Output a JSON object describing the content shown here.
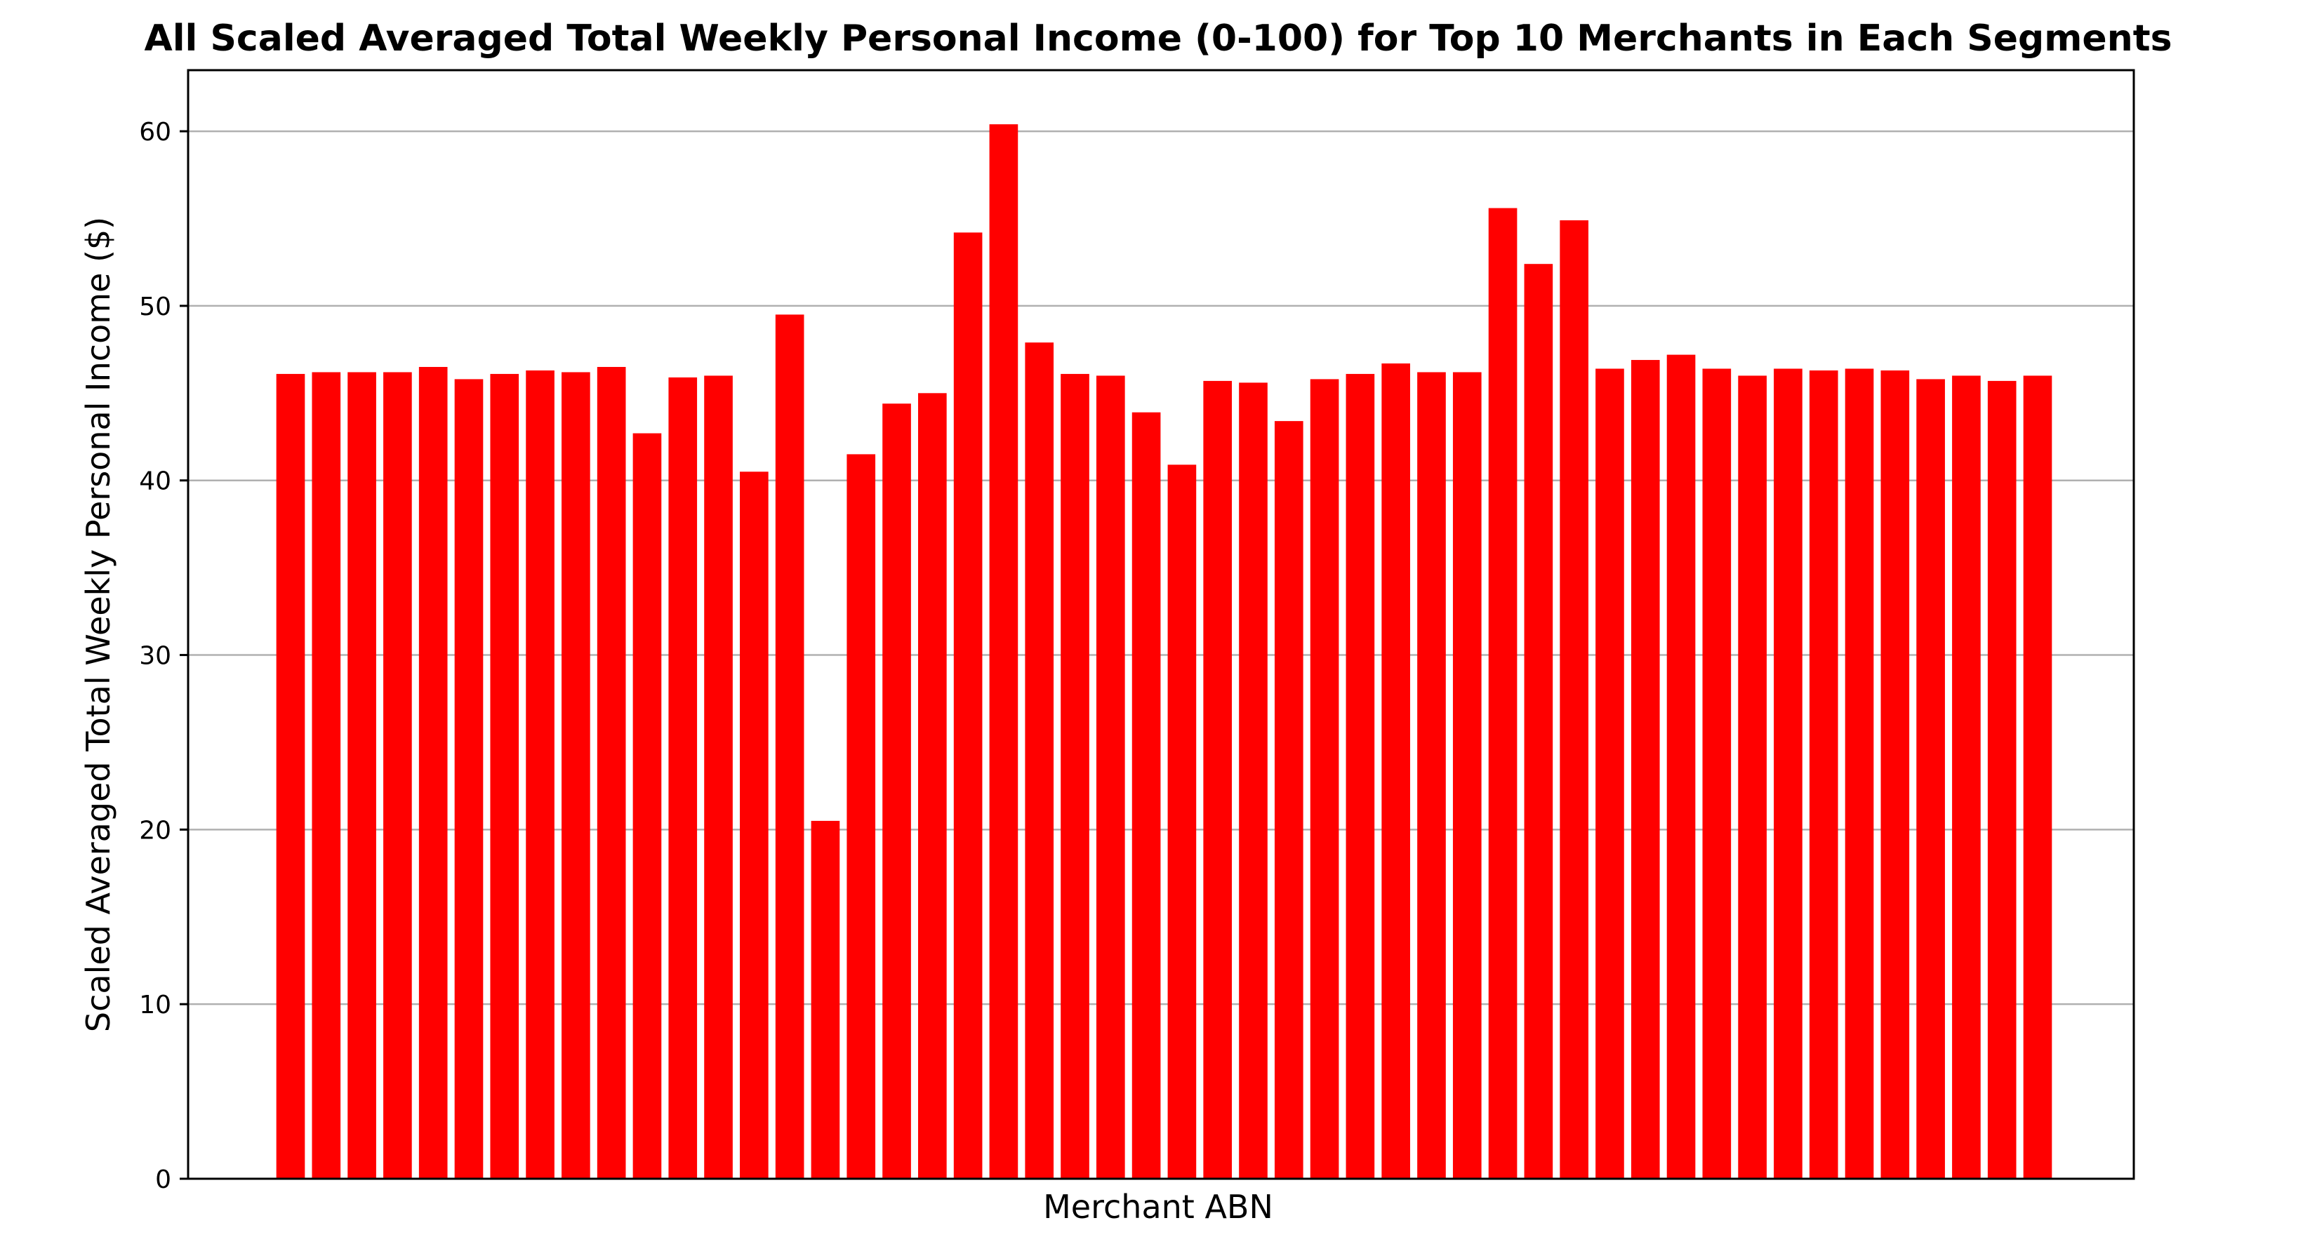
{
  "chart_data": {
    "type": "bar",
    "title": "All Scaled Averaged Total Weekly Personal Income (0-100) for Top 10 Merchants in Each Segments",
    "xlabel": "Merchant ABN",
    "ylabel": "Scaled Averaged Total Weekly Personal Income ($)",
    "ylim": [
      0,
      63.5
    ],
    "yticks": [
      0,
      10,
      20,
      30,
      40,
      50,
      60
    ],
    "grid": {
      "y": true,
      "x": false
    },
    "bar_color": "#ff0000",
    "values": [
      46.1,
      46.2,
      46.2,
      46.2,
      46.5,
      45.8,
      46.1,
      46.3,
      46.2,
      46.5,
      42.7,
      45.9,
      46.0,
      40.5,
      49.5,
      20.5,
      41.5,
      44.4,
      45.0,
      54.2,
      60.4,
      47.9,
      46.1,
      46.0,
      43.9,
      40.9,
      45.7,
      45.6,
      43.4,
      45.8,
      46.1,
      46.7,
      46.2,
      46.2,
      55.6,
      52.4,
      54.9,
      46.4,
      46.9,
      47.2,
      46.4,
      46.0,
      46.4,
      46.3,
      46.4,
      46.3,
      45.8,
      46.0,
      45.7,
      46.0
    ]
  }
}
